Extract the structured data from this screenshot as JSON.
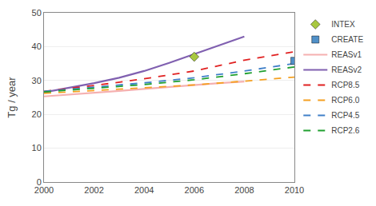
{
  "chart_data": {
    "type": "line",
    "ylabel": "Tg / year",
    "xlim": [
      2000,
      2010
    ],
    "ylim": [
      0,
      50
    ],
    "xticks": [
      2000,
      2002,
      2004,
      2006,
      2008,
      2010
    ],
    "yticks": [
      0,
      10,
      20,
      30,
      40,
      50
    ],
    "grid": "y",
    "legend": "right",
    "series": [
      {
        "name": "INTEX",
        "type": "scatter",
        "marker": "diamond",
        "color": "#a8c840",
        "x": [
          2006
        ],
        "values": [
          37.0
        ]
      },
      {
        "name": "CREATE",
        "type": "scatter",
        "marker": "square",
        "color": "#5090c8",
        "x": [
          2010
        ],
        "values": [
          35.8
        ]
      },
      {
        "name": "REASv1",
        "type": "line",
        "line_style": "solid",
        "color": "#f5b0b0",
        "x": [
          2000,
          2001,
          2002,
          2003,
          2004,
          2005,
          2006,
          2007,
          2008
        ],
        "values": [
          25.3,
          25.8,
          26.3,
          26.9,
          27.5,
          28.1,
          28.7,
          29.2,
          29.7
        ]
      },
      {
        "name": "REASv2",
        "type": "line",
        "line_style": "solid",
        "color": "#8060b0",
        "x": [
          2000,
          2001,
          2002,
          2003,
          2004,
          2005,
          2006,
          2007,
          2008
        ],
        "values": [
          26.5,
          27.8,
          29.2,
          30.8,
          32.8,
          35.2,
          37.8,
          40.5,
          43.0
        ]
      },
      {
        "name": "RCP8.5",
        "type": "line",
        "line_style": "dashed",
        "color": "#e02020",
        "x": [
          2000,
          2002,
          2004,
          2006,
          2008,
          2010
        ],
        "values": [
          26.8,
          28.5,
          30.5,
          32.8,
          36.0,
          38.5
        ]
      },
      {
        "name": "RCP6.0",
        "type": "line",
        "line_style": "dashed",
        "color": "#f5a020",
        "x": [
          2000,
          2002,
          2004,
          2006,
          2008,
          2010
        ],
        "values": [
          26.2,
          27.0,
          27.8,
          28.7,
          29.8,
          31.0
        ]
      },
      {
        "name": "RCP4.5",
        "type": "line",
        "line_style": "dashed",
        "color": "#4080c8",
        "x": [
          2000,
          2002,
          2004,
          2006,
          2008,
          2010
        ],
        "values": [
          26.8,
          28.0,
          29.3,
          30.8,
          32.8,
          35.0
        ]
      },
      {
        "name": "RCP2.6",
        "type": "line",
        "line_style": "dashed",
        "color": "#20a030",
        "x": [
          2000,
          2002,
          2004,
          2006,
          2008,
          2010
        ],
        "values": [
          26.6,
          27.7,
          28.8,
          30.2,
          32.0,
          34.0
        ]
      }
    ]
  }
}
